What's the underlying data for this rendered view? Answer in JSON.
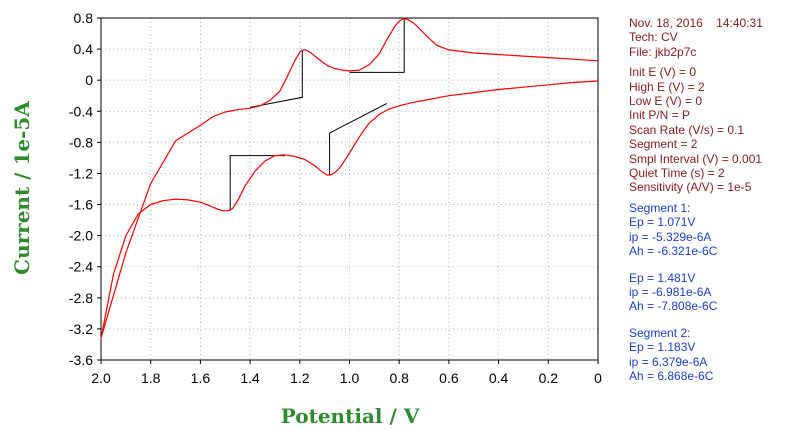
{
  "chart_data": {
    "type": "line",
    "xlabel": "Potential / V",
    "ylabel": "Current / 1e-5A",
    "xlim": [
      2.0,
      0.0
    ],
    "ylim": [
      -3.6,
      0.8
    ],
    "x_reversed": true,
    "xticks": [
      "2.0",
      "1.8",
      "1.6",
      "1.4",
      "1.2",
      "1.0",
      "0.8",
      "0.6",
      "0.4",
      "0.2",
      "0"
    ],
    "yticks": [
      "0.8",
      "0.4",
      "0",
      "-0.4",
      "-0.8",
      "-1.2",
      "-1.6",
      "-2.0",
      "-2.4",
      "-2.8",
      "-3.2",
      "-3.6"
    ],
    "grid": true,
    "series": [
      {
        "color": "#ff0000",
        "x": [
          0.0,
          0.1,
          0.2,
          0.3,
          0.4,
          0.5,
          0.6,
          0.65,
          0.7,
          0.72,
          0.74,
          0.76,
          0.77,
          0.78,
          0.79,
          0.8,
          0.82,
          0.85,
          0.88,
          0.92,
          0.96,
          1.0,
          1.03,
          1.06,
          1.09,
          1.12,
          1.15,
          1.17,
          1.18,
          1.19,
          1.2,
          1.22,
          1.25,
          1.28,
          1.32,
          1.36,
          1.4,
          1.45,
          1.5,
          1.55,
          1.6,
          1.7,
          1.8,
          1.9,
          2.0,
          1.95,
          1.9,
          1.85,
          1.8,
          1.75,
          1.7,
          1.65,
          1.6,
          1.56,
          1.53,
          1.51,
          1.49,
          1.48,
          1.47,
          1.45,
          1.42,
          1.38,
          1.34,
          1.3,
          1.26,
          1.22,
          1.18,
          1.14,
          1.11,
          1.09,
          1.08,
          1.07,
          1.06,
          1.04,
          1.01,
          0.98,
          0.95,
          0.92,
          0.88,
          0.84,
          0.8,
          0.75,
          0.7,
          0.6,
          0.5,
          0.4,
          0.3,
          0.2,
          0.1,
          0.0
        ],
        "y": [
          0.25,
          0.27,
          0.29,
          0.31,
          0.33,
          0.35,
          0.39,
          0.45,
          0.6,
          0.67,
          0.73,
          0.77,
          0.785,
          0.79,
          0.78,
          0.76,
          0.68,
          0.52,
          0.34,
          0.2,
          0.13,
          0.12,
          0.13,
          0.15,
          0.19,
          0.26,
          0.34,
          0.38,
          0.39,
          0.385,
          0.36,
          0.25,
          0.05,
          -0.14,
          -0.26,
          -0.33,
          -0.36,
          -0.38,
          -0.41,
          -0.47,
          -0.58,
          -0.78,
          -1.33,
          -2.22,
          -3.32,
          -2.5,
          -2.0,
          -1.72,
          -1.6,
          -1.55,
          -1.53,
          -1.54,
          -1.57,
          -1.62,
          -1.66,
          -1.68,
          -1.68,
          -1.67,
          -1.65,
          -1.55,
          -1.36,
          -1.17,
          -1.04,
          -0.97,
          -0.96,
          -0.98,
          -1.02,
          -1.1,
          -1.18,
          -1.22,
          -1.22,
          -1.21,
          -1.19,
          -1.13,
          -0.99,
          -0.83,
          -0.68,
          -0.55,
          -0.44,
          -0.37,
          -0.33,
          -0.29,
          -0.26,
          -0.2,
          -0.16,
          -0.12,
          -0.09,
          -0.06,
          -0.03,
          -0.01
        ]
      }
    ],
    "baselines": [
      {
        "x": [
          1.4,
          1.19,
          1.19
        ],
        "y": [
          -0.35,
          -0.22,
          0.38
        ]
      },
      {
        "x": [
          1.0,
          0.78,
          0.78
        ],
        "y": [
          0.1,
          0.1,
          0.79
        ]
      },
      {
        "x": [
          1.48,
          1.48,
          1.26
        ],
        "y": [
          -1.68,
          -0.97,
          -0.97
        ]
      },
      {
        "x": [
          1.08,
          1.08,
          0.85
        ],
        "y": [
          -1.22,
          -0.68,
          -0.3
        ]
      }
    ]
  },
  "info": {
    "date": "Nov. 18, 2016",
    "time": "14:40:31",
    "tech": "Tech: CV",
    "file": "File: jkb2p7c",
    "params": [
      "Init E (V) = 0",
      "High E (V) = 2",
      "Low E (V) = 0",
      "Init P/N = P",
      "Scan Rate (V/s) = 0.1",
      "Segment = 2",
      "Smpl Interval (V) = 0.001",
      "Quiet Time (s) = 2",
      "Sensitivity (A/V) = 1e-5"
    ],
    "seg1_title": "Segment 1:",
    "seg1_peak1": [
      "Ep = 1.071V",
      "ip = -5.329e-6A",
      "Ah = -6.321e-6C"
    ],
    "seg1_peak2": [
      "Ep = 1.481V",
      "ip = -6.981e-6A",
      "Ah = -7.808e-6C"
    ],
    "seg2_title": "Segment 2:",
    "seg2_peak1": [
      "Ep = 1.183V",
      "ip = 6.379e-6A",
      "Ah = 6.868e-6C"
    ]
  },
  "colors": {
    "curve": "#ff0000",
    "baseline": "#000000",
    "axis_title": "#2e8b2e",
    "info_dark": "#8b1a1a",
    "info_blue": "#1a3fd1"
  }
}
